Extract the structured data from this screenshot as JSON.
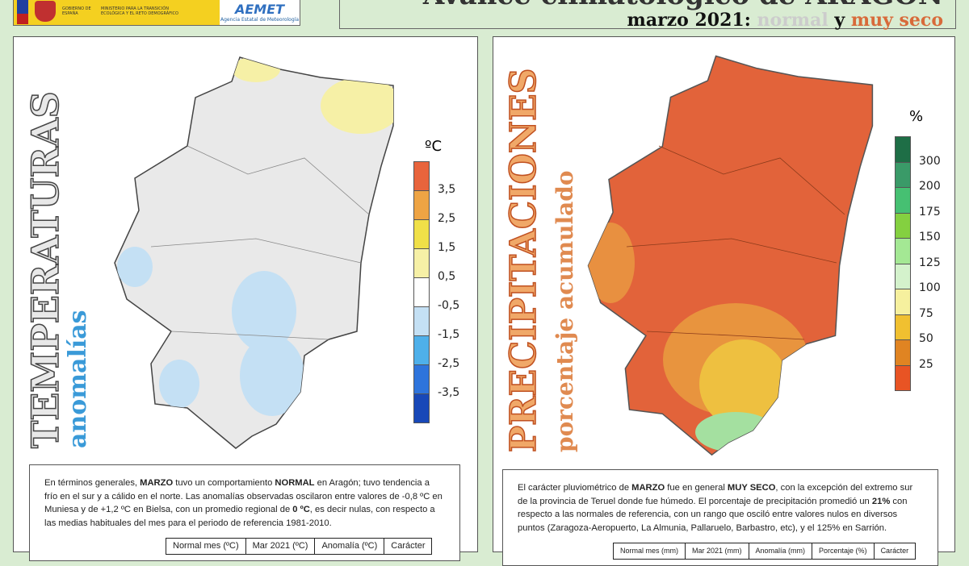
{
  "header": {
    "gov_label": "GOBIERNO DE ESPAÑA",
    "ministry": "MINISTERIO PARA LA TRANSICIÓN ECOLÓGICA Y EL RETO DEMOGRÁFICO",
    "agency_logo": "AEMET",
    "agency": "Agencia Estatal de Meteorología",
    "title": "Avance climatológico de ARAGÓN",
    "subtitle_prefix": "marzo 2021:",
    "subtitle_normal": "normal",
    "subtitle_y": "y",
    "subtitle_seco": "muy seco"
  },
  "temp": {
    "title": "TEMPERATURAS",
    "subtitle": "anomalías",
    "unit": "ºC",
    "legend": [
      {
        "label": "",
        "color": "#e8643c"
      },
      {
        "label": "3,5",
        "color": "#eea444"
      },
      {
        "label": "2,5",
        "color": "#f0e048"
      },
      {
        "label": "1,5",
        "color": "#f6f0a6"
      },
      {
        "label": "0,5",
        "color": "#ffffff"
      },
      {
        "label": "-0,5",
        "color": "#c4e0f4"
      },
      {
        "label": "-1,5",
        "color": "#4eb0ea"
      },
      {
        "label": "-2,5",
        "color": "#2e74dc"
      },
      {
        "label": "-3,5",
        "color": "#1848b8"
      }
    ],
    "text_parts": [
      "En términos generales, ",
      "MARZO",
      " tuvo un comportamiento ",
      "NORMAL",
      " en Aragón; tuvo tendencia a frío en el sur y a cálido en el norte. Las anomalías observadas oscilaron entre valores de -0,8 ºC en Muniesa y de +1,2 ºC en Bielsa, con un promedio regional de ",
      "0 ºC",
      ", es decir nulas, con respecto a las medias habituales del mes para el periodo de referencia 1981-2010."
    ],
    "table_headers": [
      "Normal mes (ºC)",
      "Mar 2021 (ºC)",
      "Anomalía (ºC)",
      "Carácter"
    ]
  },
  "precip": {
    "title": "PRECIPITACIONES",
    "subtitle": "porcentaje acumulado",
    "unit": "%",
    "legend": [
      {
        "label": "",
        "color": "#1e6e46"
      },
      {
        "label": "300",
        "color": "#3a9a68"
      },
      {
        "label": "200",
        "color": "#46c072"
      },
      {
        "label": "175",
        "color": "#84d040"
      },
      {
        "label": "150",
        "color": "#a4e894"
      },
      {
        "label": "125",
        "color": "#d4f2cc"
      },
      {
        "label": "100",
        "color": "#f6f09e"
      },
      {
        "label": "75",
        "color": "#f0c030"
      },
      {
        "label": "50",
        "color": "#e08422"
      },
      {
        "label": "25",
        "color": "#e85424"
      }
    ],
    "text_parts": [
      "El carácter pluviométrico de ",
      "MARZO",
      " fue en general ",
      "MUY SECO",
      ", con la excepción del extremo sur de la provincia de Teruel donde fue húmedo. El porcentaje de precipitación promedió un ",
      "21%",
      " con respecto a las normales de referencia, con un rango que osciló entre valores nulos en diversos puntos (Zaragoza-Aeropuerto, La Almunia, Pallaruelo, Barbastro, etc), y el 125% en Sarrión."
    ],
    "table_headers": [
      "Normal mes (mm)",
      "Mar 2021 (mm)",
      "Anomalía (mm)",
      "Porcentaje (%)",
      "Carácter"
    ]
  }
}
